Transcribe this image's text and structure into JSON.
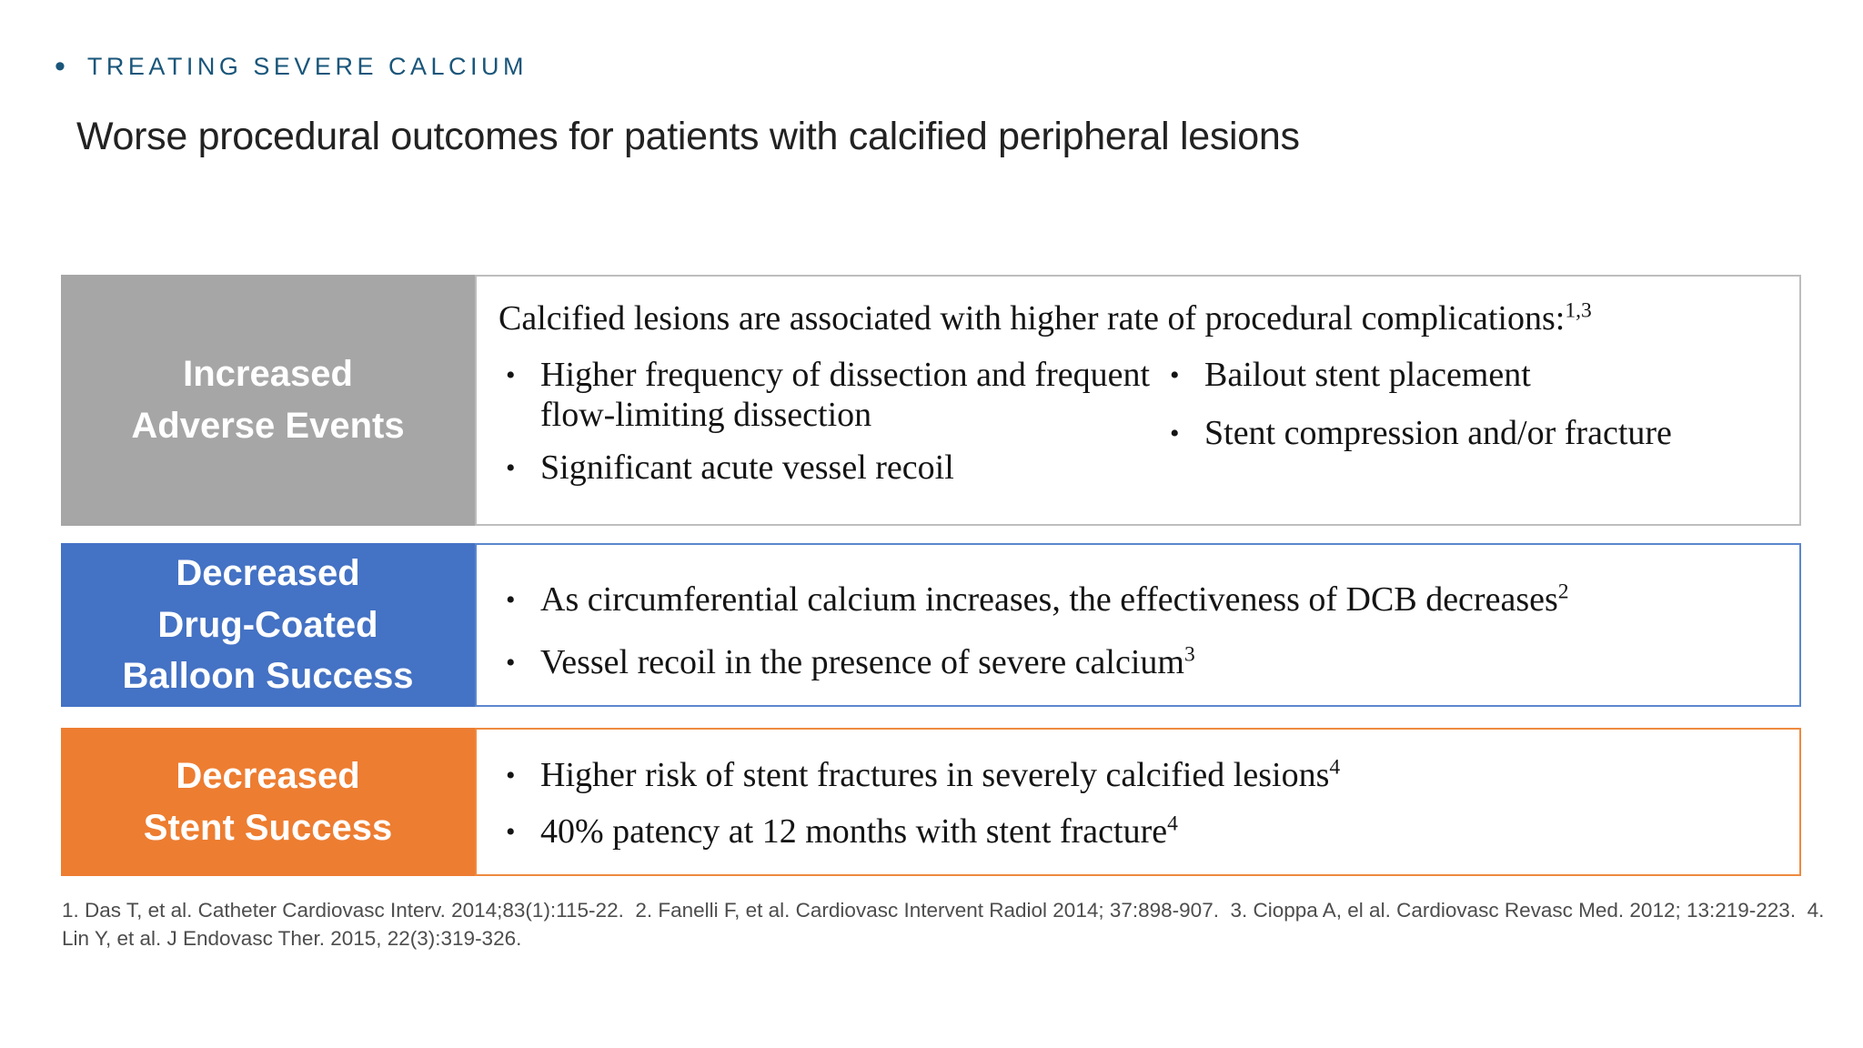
{
  "kicker": {
    "bullet": "•",
    "text": "TREATING SEVERE CALCIUM"
  },
  "title": "Worse procedural outcomes for patients with calcified peripheral lesions",
  "rows": [
    {
      "label_lines": [
        "Increased",
        "Adverse Events"
      ],
      "label_color": "#a6a6a6",
      "border_color": "#bdbdbd",
      "intro": {
        "text": "Calcified lesions are associated with higher rate of procedural complications:",
        "sup": "1,3"
      },
      "col1": [
        {
          "text": "Higher frequency of dissection and frequent flow-limiting dissection",
          "sup": ""
        },
        {
          "text": "Significant acute vessel recoil",
          "sup": ""
        }
      ],
      "col2": [
        {
          "text": "Bailout stent placement",
          "sup": ""
        },
        {
          "text": "Stent compression and/or fracture",
          "sup": ""
        }
      ]
    },
    {
      "label_lines": [
        "Decreased",
        "Drug-Coated",
        "Balloon Success"
      ],
      "label_color": "#4472c4",
      "border_color": "#5b87ce",
      "bullets": [
        {
          "text": "As circumferential calcium increases, the effectiveness of DCB decreases",
          "sup": "2"
        },
        {
          "text": "Vessel recoil in the presence of severe calcium",
          "sup": "3"
        }
      ]
    },
    {
      "label_lines": [
        "Decreased",
        "Stent Success"
      ],
      "label_color": "#ed7d31",
      "border_color": "#ee8a3f",
      "bullets": [
        {
          "text": "Higher risk of stent fractures in severely calcified lesions",
          "sup": "4"
        },
        {
          "text": "40% patency at 12 months with stent fracture",
          "sup": "4"
        }
      ]
    }
  ],
  "footnotes": {
    "line1": "1. Das T, et al. Catheter Cardiovasc Interv. 2014;83(1):115-22.  2. Fanelli F, et al. Cardiovasc Intervent Radiol 2014; 37:898-907.  3. Cioppa A, el al. Cardiovasc Revasc Med. 2012; 13:219-223.  4.",
    "line2": "Lin Y, et al. J Endovasc Ther. 2015, 22(3):319-326."
  },
  "colors": {
    "kicker_teal": "#1a567a",
    "label_gray": "#a6a6a6",
    "label_blue": "#4472c4",
    "label_orange": "#ed7d31",
    "footnote_gray": "#4d4d4d",
    "title_dark": "#222222"
  }
}
